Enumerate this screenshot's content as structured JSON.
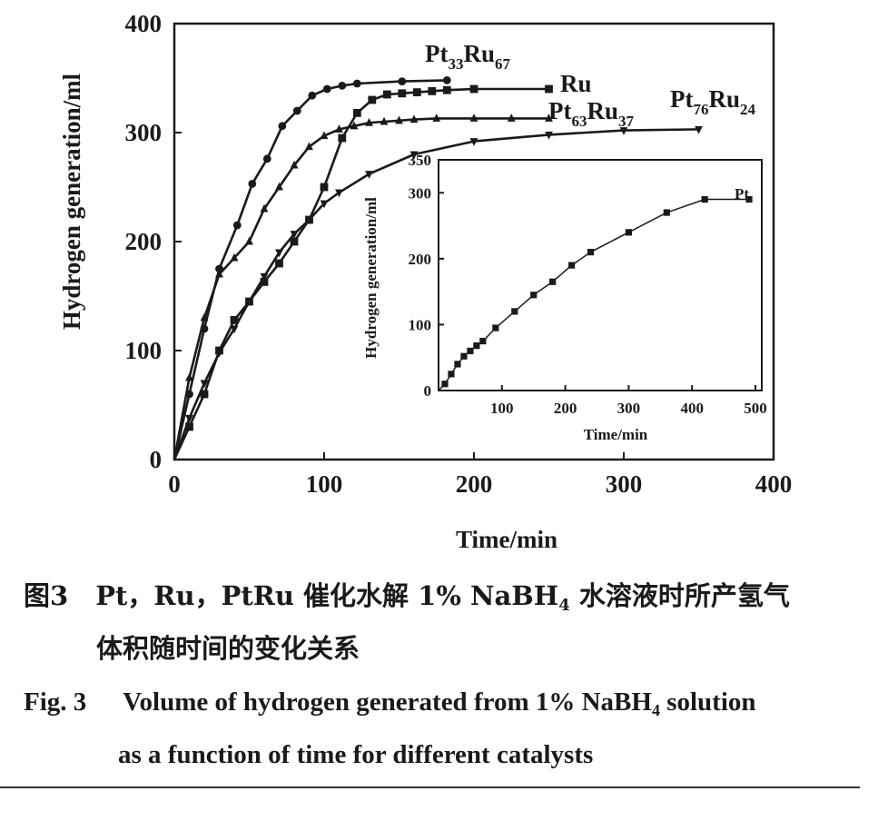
{
  "figure": {
    "caption_cn": {
      "label": "图3",
      "line1_before": "Pt，Ru，PtRu 催化水解 1% NaBH",
      "line1_sub": "4",
      "line1_after": " 水溶液时所产氢气",
      "line2": "体积随时间的变化关系"
    },
    "caption_en": {
      "label": "Fig. 3",
      "line1_before": "Volume of hydrogen generated from 1%  NaBH",
      "line1_sub": "4",
      "line1_after": " solution",
      "line2": "as a function of time for different catalysts"
    }
  },
  "chart_data": [
    {
      "type": "line",
      "xlabel": "Time/min",
      "ylabel": "Hydrogen generation/ml",
      "xlim": [
        0,
        400
      ],
      "ylim": [
        0,
        400
      ],
      "xticks": [
        0,
        100,
        200,
        300,
        400
      ],
      "yticks": [
        0,
        100,
        200,
        300,
        400
      ],
      "grid": false,
      "legend": "labels at line ends",
      "series": [
        {
          "name": "Pt33Ru67",
          "label": {
            "base1": "Pt",
            "sub1": "33",
            "base2": "Ru",
            "sub2": "67"
          },
          "marker": "circle",
          "x": [
            0,
            10,
            20,
            30,
            42,
            52,
            62,
            72,
            82,
            92,
            102,
            112,
            122,
            152,
            182
          ],
          "y": [
            0,
            60,
            120,
            175,
            215,
            253,
            276,
            306,
            320,
            334,
            340,
            343,
            345,
            347,
            348
          ]
        },
        {
          "name": "Ru",
          "label": {
            "base1": "Ru",
            "sub1": "",
            "base2": "",
            "sub2": ""
          },
          "marker": "square",
          "x": [
            0,
            10,
            20,
            30,
            40,
            50,
            60,
            70,
            80,
            90,
            100,
            112,
            122,
            132,
            142,
            152,
            162,
            172,
            182,
            200,
            250
          ],
          "y": [
            0,
            30,
            60,
            100,
            128,
            145,
            163,
            180,
            200,
            220,
            250,
            295,
            318,
            330,
            335,
            336,
            337,
            338,
            339,
            340,
            340
          ]
        },
        {
          "name": "Pt63Ru37",
          "label": {
            "base1": "Pt",
            "sub1": "63",
            "base2": "Ru",
            "sub2": "37"
          },
          "marker": "triangle-up",
          "x": [
            0,
            10,
            20,
            30,
            40,
            50,
            60,
            70,
            80,
            90,
            100,
            110,
            120,
            130,
            140,
            150,
            160,
            175,
            200,
            225,
            250
          ],
          "y": [
            0,
            75,
            130,
            170,
            185,
            200,
            230,
            250,
            270,
            287,
            297,
            303,
            306,
            309,
            310,
            311,
            312,
            313,
            313,
            313,
            313
          ]
        },
        {
          "name": "Pt76Ru24",
          "label": {
            "base1": "Pt",
            "sub1": "76",
            "base2": "Ru",
            "sub2": "24"
          },
          "marker": "triangle-down",
          "x": [
            0,
            10,
            20,
            30,
            40,
            50,
            60,
            70,
            80,
            90,
            100,
            110,
            130,
            160,
            200,
            250,
            300,
            350
          ],
          "y": [
            0,
            38,
            70,
            98,
            120,
            145,
            168,
            190,
            207,
            220,
            235,
            245,
            262,
            280,
            292,
            298,
            302,
            303
          ]
        }
      ]
    },
    {
      "type": "line",
      "inset": true,
      "xlabel": "Time/min",
      "ylabel": "Hydrogen generation/ml",
      "xlim": [
        0,
        510
      ],
      "ylim": [
        0,
        350
      ],
      "xticks": [
        100,
        200,
        300,
        400,
        500
      ],
      "yticks": [
        0,
        100,
        200,
        300,
        350
      ],
      "grid": false,
      "series": [
        {
          "name": "Pt",
          "label": {
            "base1": "Pt",
            "sub1": "",
            "base2": "",
            "sub2": ""
          },
          "marker": "square",
          "x": [
            0,
            10,
            20,
            30,
            40,
            50,
            60,
            70,
            90,
            120,
            150,
            180,
            210,
            240,
            300,
            360,
            420,
            490
          ],
          "y": [
            0,
            10,
            25,
            40,
            52,
            60,
            68,
            75,
            95,
            120,
            145,
            165,
            190,
            210,
            240,
            270,
            290,
            290
          ]
        }
      ]
    }
  ]
}
